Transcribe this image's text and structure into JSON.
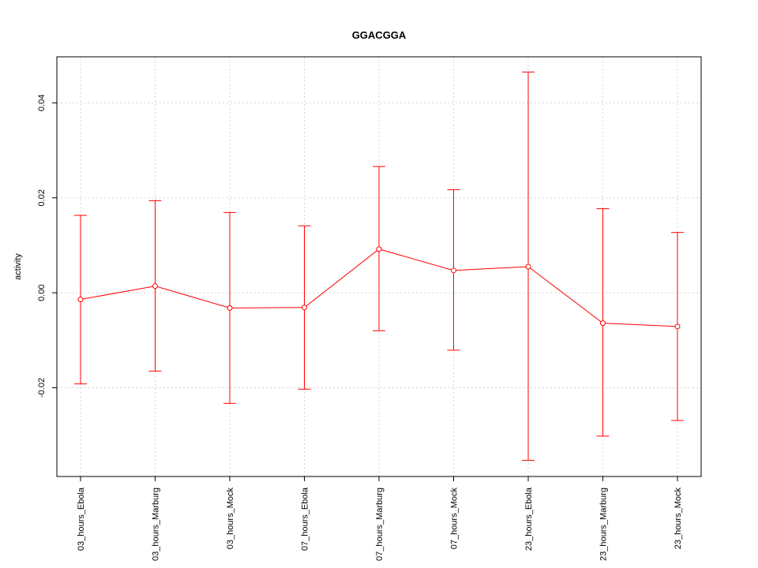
{
  "chart_data": {
    "type": "line",
    "title": "GGACGGA",
    "xlabel": "",
    "ylabel": "activity",
    "categories": [
      "03_hours_Ebola",
      "03_hours_Marburg",
      "03_hours_Mock",
      "07_hours_Ebola",
      "07_hours_Marburg",
      "07_hours_Mock",
      "23_hours_Ebola",
      "23_hours_Marburg",
      "23_hours_Mock"
    ],
    "series": [
      {
        "values": [
          -0.0014,
          0.0014,
          -0.0032,
          -0.0031,
          0.0092,
          0.0047,
          0.0055,
          -0.0064,
          -0.0071
        ],
        "lower": [
          -0.0192,
          -0.0165,
          -0.0233,
          -0.0203,
          -0.008,
          -0.0121,
          -0.0353,
          -0.0302,
          -0.0269
        ],
        "upper": [
          0.0163,
          0.0194,
          0.0169,
          0.0141,
          0.0266,
          0.0217,
          0.0465,
          0.0177,
          0.0127
        ],
        "color": "#ff0000"
      }
    ],
    "ylim": [
      -0.0387,
      0.0497
    ],
    "y_ticks": [
      -0.02,
      0.0,
      0.02,
      0.04
    ],
    "y_tick_labels": [
      "-0.02",
      "0.00",
      "0.02",
      "0.04"
    ],
    "grid": true,
    "grid_color": "#d3d3d3",
    "axis_color": "#000000"
  }
}
